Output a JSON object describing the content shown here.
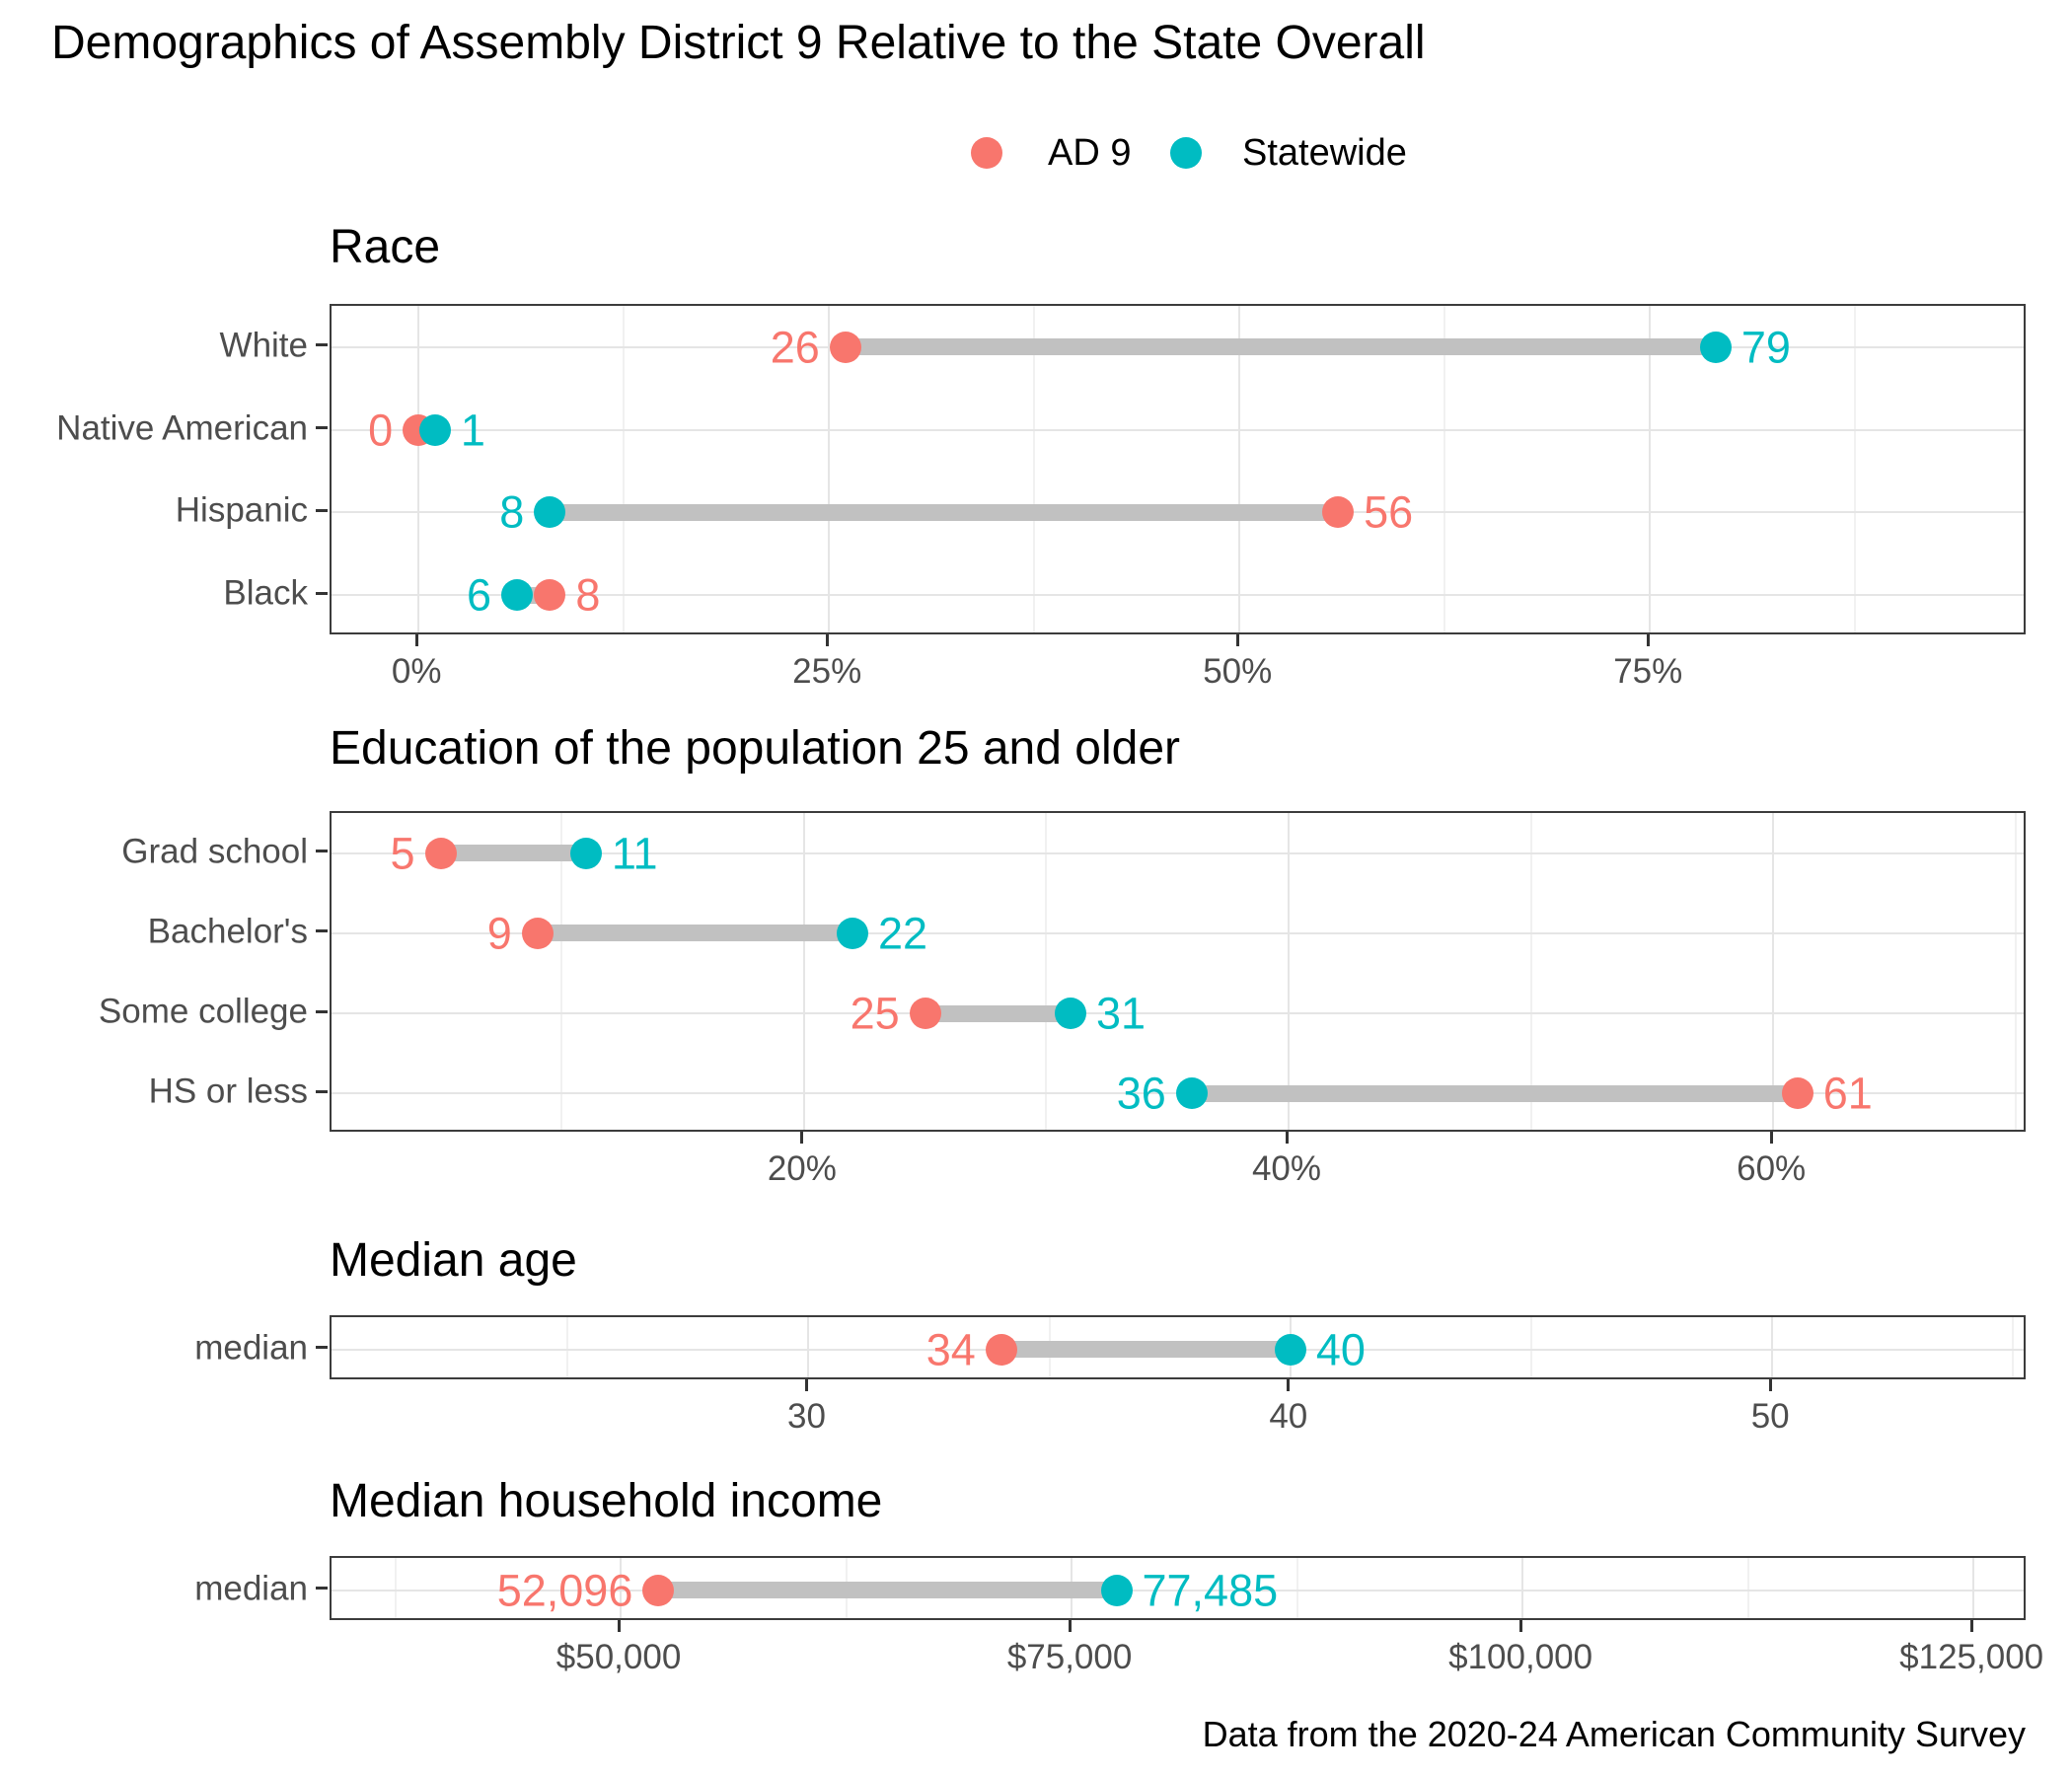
{
  "title": "Demographics of Assembly District 9 Relative to the State Overall",
  "caption": "Data from the 2020-24 American Community Survey",
  "legend": {
    "position": "top",
    "items": [
      {
        "label": "AD 9",
        "color": "#F8766D"
      },
      {
        "label": "Statewide",
        "color": "#00BCC2"
      }
    ]
  },
  "colors": {
    "ad9": "#F8766D",
    "statewide": "#00BCC2",
    "segment": "#C1C1C1",
    "axis_text": "#4D4D4D",
    "tick_mark": "#333333",
    "panel_border": "#3C3C3C",
    "grid_major": "#E5E5E5",
    "grid_minor": "#F1F1F1"
  },
  "chart_data": [
    {
      "type": "dumbbell",
      "title": "Race",
      "categories": [
        "White",
        "Native American",
        "Hispanic",
        "Black"
      ],
      "series": [
        {
          "name": "AD 9",
          "color": "#F8766D",
          "values": [
            26,
            0,
            56,
            8
          ],
          "labels": [
            "26",
            "0",
            "56",
            "8"
          ]
        },
        {
          "name": "Statewide",
          "color": "#00BCC2",
          "values": [
            79,
            1,
            8,
            6
          ],
          "labels": [
            "79",
            "1",
            "8",
            "6"
          ]
        }
      ],
      "x_ticks": {
        "values": [
          0,
          25,
          50,
          75
        ],
        "labels": [
          "0%",
          "25%",
          "50%",
          "75%"
        ]
      },
      "x_minor": [
        12.5,
        37.5,
        62.5,
        87.5
      ],
      "xlim": [
        -5.3,
        98
      ],
      "grid": true,
      "legend_position": "top"
    },
    {
      "type": "dumbbell",
      "title": "Education of the population 25 and older",
      "categories": [
        "Grad school",
        "Bachelor's",
        "Some college",
        "HS or less"
      ],
      "series": [
        {
          "name": "AD 9",
          "color": "#F8766D",
          "values": [
            5,
            9,
            25,
            61
          ],
          "labels": [
            "5",
            "9",
            "25",
            "61"
          ]
        },
        {
          "name": "Statewide",
          "color": "#00BCC2",
          "values": [
            11,
            22,
            31,
            36
          ],
          "labels": [
            "11",
            "22",
            "31",
            "36"
          ]
        }
      ],
      "x_ticks": {
        "values": [
          20,
          40,
          60
        ],
        "labels": [
          "20%",
          "40%",
          "60%"
        ]
      },
      "x_minor": [
        10,
        30,
        50,
        70
      ],
      "xlim": [
        0.5,
        70.5
      ],
      "grid": true
    },
    {
      "type": "dumbbell",
      "title": "Median age",
      "categories": [
        "median"
      ],
      "series": [
        {
          "name": "AD 9",
          "color": "#F8766D",
          "values": [
            34
          ],
          "labels": [
            "34"
          ]
        },
        {
          "name": "Statewide",
          "color": "#00BCC2",
          "values": [
            40
          ],
          "labels": [
            "40"
          ]
        }
      ],
      "x_ticks": {
        "values": [
          30,
          40,
          50
        ],
        "labels": [
          "30",
          "40",
          "50"
        ]
      },
      "x_minor": [
        25,
        35,
        45,
        55
      ],
      "xlim": [
        20.1,
        55.3
      ],
      "grid": true
    },
    {
      "type": "dumbbell",
      "title": "Median household income",
      "categories": [
        "median"
      ],
      "series": [
        {
          "name": "AD 9",
          "color": "#F8766D",
          "values": [
            52096
          ],
          "labels": [
            "52,096"
          ]
        },
        {
          "name": "Statewide",
          "color": "#00BCC2",
          "values": [
            77485
          ],
          "labels": [
            "77,485"
          ]
        }
      ],
      "x_ticks": {
        "values": [
          50000,
          75000,
          100000,
          125000
        ],
        "labels": [
          "$50,000",
          "$75,000",
          "$100,000",
          "$125,000"
        ]
      },
      "x_minor": [
        37500,
        62500,
        87500,
        112500
      ],
      "xlim": [
        33970,
        128000
      ],
      "grid": true
    }
  ]
}
